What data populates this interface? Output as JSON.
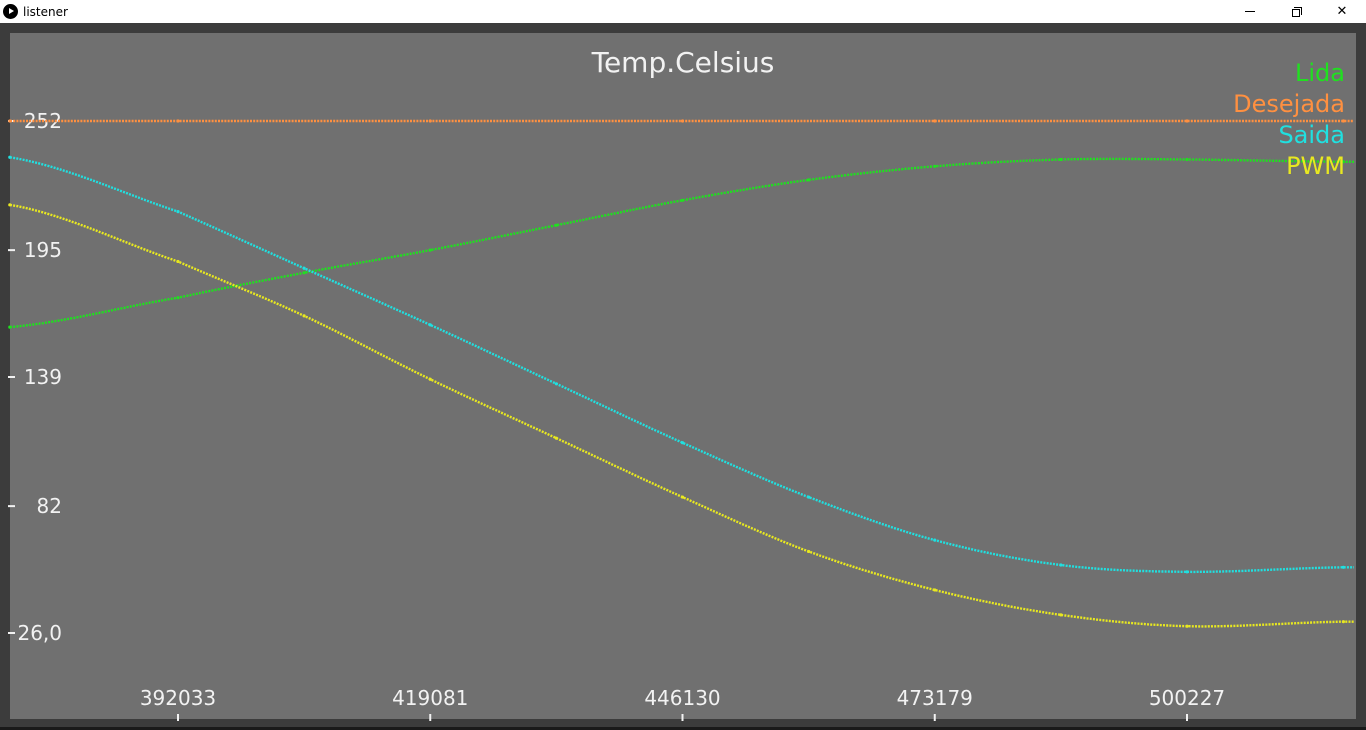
{
  "window": {
    "title": "listener",
    "icon": "play-circle-icon",
    "controls": {
      "minimize": "minimize-icon",
      "maximize": "restore-icon",
      "close": "close-icon"
    }
  },
  "colors": {
    "plot_background": "#707070",
    "frame": "#3c3c3c",
    "text": "#f2f2f2",
    "lida": "#20e020",
    "desejada": "#ff9040",
    "saida": "#20e0e0",
    "pwm": "#e8e820"
  },
  "chart_data": {
    "type": "scatter",
    "title": "Temp.Celsius",
    "xlabel": "",
    "ylabel": "",
    "y_ticks": [
      "252",
      "195",
      "139",
      "82",
      "26,0"
    ],
    "y_tick_values": [
      252,
      195,
      139,
      82,
      26
    ],
    "x_ticks": [
      "392033",
      "419081",
      "446130",
      "473179",
      "500227"
    ],
    "x_tick_values": [
      392033,
      419081,
      446130,
      473179,
      500227
    ],
    "xlim": [
      374000,
      517000
    ],
    "ylim": [
      26,
      252
    ],
    "grid": false,
    "legend": "top-right",
    "series": [
      {
        "name": "Lida",
        "color": "#20e020",
        "x": [
          374000,
          392033,
          405557,
          419081,
          432605,
          446130,
          459654,
          473179,
          486703,
          500227,
          517000
        ],
        "y": [
          161,
          174,
          185,
          195,
          206,
          217,
          226,
          232,
          235,
          235,
          234
        ]
      },
      {
        "name": "Desejada",
        "color": "#ff9040",
        "x": [
          374000,
          392033,
          419081,
          446130,
          473179,
          500227,
          517000
        ],
        "y": [
          252,
          252,
          252,
          252,
          252,
          252,
          252
        ]
      },
      {
        "name": "Saida",
        "color": "#20e0e0",
        "x": [
          374000,
          392033,
          405557,
          419081,
          432605,
          446130,
          459654,
          473179,
          486703,
          500227,
          517000
        ],
        "y": [
          236,
          212,
          187,
          162,
          136,
          110,
          86,
          67,
          56,
          53,
          55
        ]
      },
      {
        "name": "PWM",
        "color": "#e8e820",
        "x": [
          374000,
          392033,
          405557,
          419081,
          432605,
          446130,
          459654,
          473179,
          486703,
          500227,
          517000
        ],
        "y": [
          215,
          190,
          166,
          138,
          112,
          86,
          62,
          45,
          34,
          29,
          31
        ]
      }
    ]
  }
}
